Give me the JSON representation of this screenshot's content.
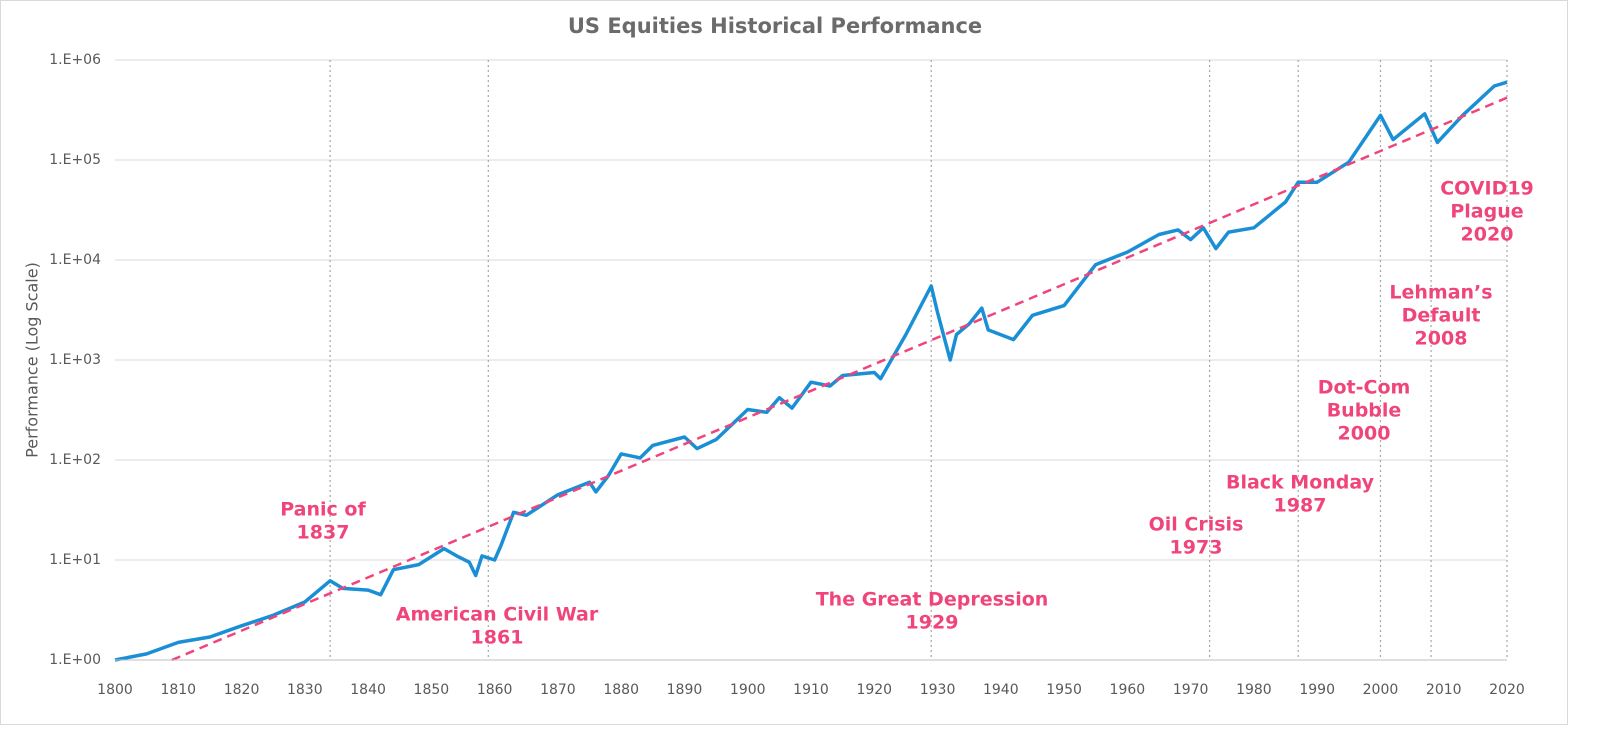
{
  "chart_data": {
    "type": "line",
    "title": "US Equities Historical Performance",
    "y_label": "Performance (Log Scale)",
    "log_y": true,
    "grid": true,
    "xlim": [
      1800,
      2020
    ],
    "xticks": [
      1800,
      1810,
      1820,
      1830,
      1840,
      1850,
      1860,
      1870,
      1880,
      1890,
      1900,
      1910,
      1920,
      1930,
      1940,
      1950,
      1960,
      1970,
      1980,
      1990,
      2000,
      2010,
      2020
    ],
    "ylim": [
      1,
      1000000
    ],
    "yticks": [
      {
        "value": 1,
        "label": "1.E+00"
      },
      {
        "value": 10,
        "label": "1.E+01"
      },
      {
        "value": 100,
        "label": "1.E+02"
      },
      {
        "value": 1000,
        "label": "1.E+03"
      },
      {
        "value": 10000,
        "label": "1.E+04"
      },
      {
        "value": 100000,
        "label": "1.E+05"
      },
      {
        "value": 1000000,
        "label": "1.E+06"
      }
    ],
    "series": [
      {
        "color": "#1a8fd6",
        "x": [
          1800,
          1805,
          1810,
          1815,
          1820,
          1825,
          1830,
          1834,
          1836,
          1840,
          1842,
          1844,
          1848,
          1852,
          1854,
          1856,
          1857,
          1858,
          1860,
          1861,
          1863,
          1865,
          1870,
          1875,
          1876,
          1878,
          1880,
          1883,
          1885,
          1890,
          1892,
          1895,
          1900,
          1903,
          1905,
          1907,
          1910,
          1913,
          1915,
          1920,
          1921,
          1925,
          1929,
          1930,
          1932,
          1933,
          1935,
          1937,
          1938,
          1942,
          1945,
          1950,
          1955,
          1960,
          1965,
          1968,
          1970,
          1972,
          1974,
          1976,
          1980,
          1985,
          1987,
          1990,
          1995,
          2000,
          2002,
          2007,
          2009,
          2013,
          2018,
          2020
        ],
        "values": [
          1.0,
          1.15,
          1.5,
          1.7,
          2.2,
          2.8,
          3.8,
          6.2,
          5.2,
          5.0,
          4.5,
          8.0,
          9.0,
          13,
          11,
          9.5,
          7,
          11,
          10,
          14,
          30,
          28,
          45,
          60,
          48,
          70,
          115,
          105,
          140,
          170,
          130,
          160,
          320,
          300,
          420,
          330,
          600,
          550,
          700,
          750,
          650,
          1800,
          5500,
          3000,
          1000,
          1800,
          2300,
          3300,
          2000,
          1600,
          2800,
          3500,
          9000,
          12000,
          18000,
          20000,
          16000,
          21000,
          13000,
          19000,
          21000,
          38000,
          60000,
          60000,
          95000,
          280000,
          160000,
          290000,
          150000,
          280000,
          550000,
          600000
        ]
      }
    ],
    "trend": {
      "color": "#f0457a",
      "x": [
        1809,
        2020
      ],
      "values": [
        1,
        420000
      ]
    },
    "event_color": "#f0457a",
    "events": [
      {
        "x": 1834,
        "label": [
          "Panic of",
          "1837"
        ]
      },
      {
        "x": 1859,
        "label": [
          "American Civil War",
          "1861"
        ]
      },
      {
        "x": 1929,
        "label": [
          "The Great Depression",
          "1929"
        ]
      },
      {
        "x": 1973,
        "label": [
          "Oil Crisis",
          "1973"
        ]
      },
      {
        "x": 1987,
        "label": [
          "Black Monday",
          "1987"
        ]
      },
      {
        "x": 2000,
        "label": [
          "Dot-Com",
          "Bubble",
          "2000"
        ]
      },
      {
        "x": 2008,
        "label": [
          "Lehman’s",
          "Default",
          "2008"
        ]
      },
      {
        "x": 2020,
        "label": [
          "COVID19",
          "Plague",
          "2020"
        ]
      }
    ]
  }
}
